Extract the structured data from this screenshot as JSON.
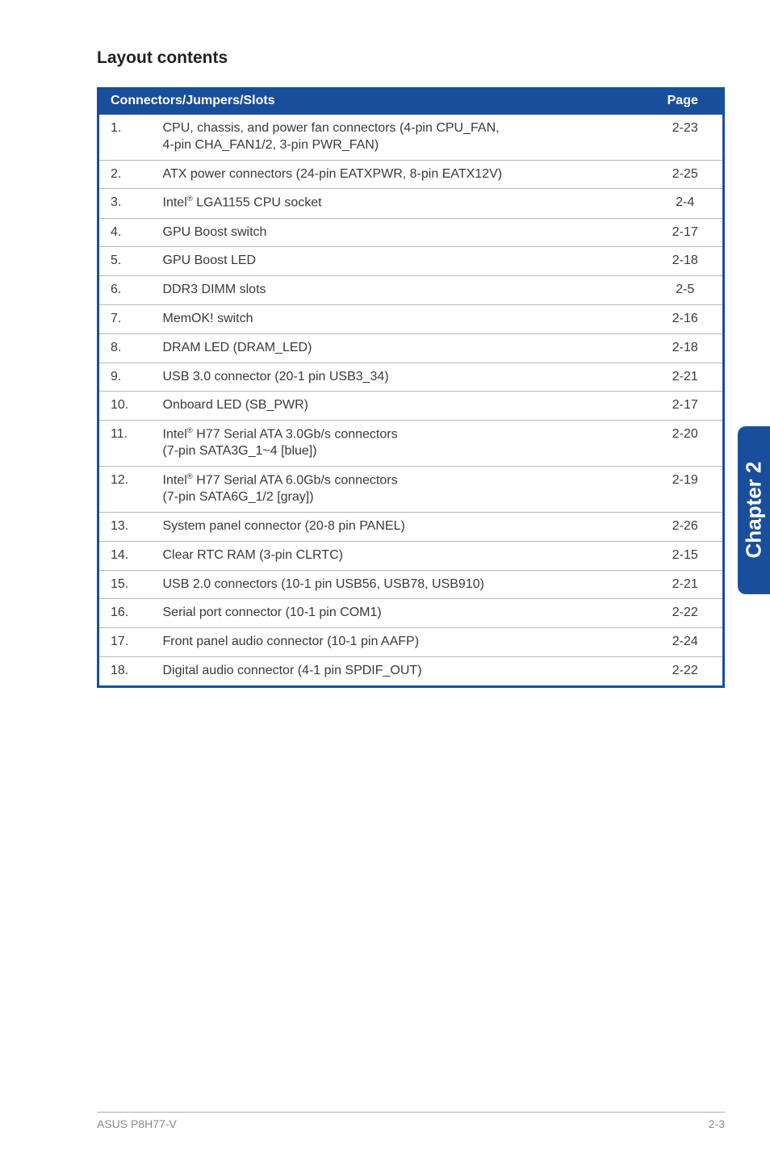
{
  "section_title": "Layout contents",
  "side_tab": "Chapter 2",
  "table": {
    "header_main": "Connectors/Jumpers/Slots",
    "header_page": "Page",
    "rows": [
      {
        "n": "1.",
        "desc": "CPU, chassis, and power fan connectors (4-pin CPU_FAN, 4-pin CHA_FAN1/2, 3-pin PWR_FAN)",
        "pg": "2-23"
      },
      {
        "n": "2.",
        "desc": "ATX power connectors (24-pin EATXPWR, 8-pin EATX12V)",
        "pg": "2-25"
      },
      {
        "n": "3.",
        "desc": "Intel® LGA1155 CPU socket",
        "pg": "2-4",
        "sup_after": "Intel"
      },
      {
        "n": "4.",
        "desc": "GPU Boost switch",
        "pg": "2-17"
      },
      {
        "n": "5.",
        "desc": "GPU Boost LED",
        "pg": "2-18"
      },
      {
        "n": "6.",
        "desc": "DDR3 DIMM slots",
        "pg": "2-5"
      },
      {
        "n": "7.",
        "desc": "MemOK! switch",
        "pg": "2-16"
      },
      {
        "n": "8.",
        "desc": "DRAM LED (DRAM_LED)",
        "pg": "2-18"
      },
      {
        "n": "9.",
        "desc": "USB 3.0 connector (20-1 pin USB3_34)",
        "pg": "2-21"
      },
      {
        "n": "10.",
        "desc": "Onboard LED (SB_PWR)",
        "pg": "2-17"
      },
      {
        "n": "11.",
        "desc": "Intel® H77 Serial ATA 3.0Gb/s connectors (7-pin SATA3G_1~4 [blue])",
        "pg": "2-20",
        "sup_after": "Intel"
      },
      {
        "n": "12.",
        "desc": "Intel® H77 Serial ATA 6.0Gb/s connectors (7-pin SATA6G_1/2 [gray])",
        "pg": "2-19",
        "sup_after": "Intel"
      },
      {
        "n": "13.",
        "desc": "System panel connector (20-8 pin PANEL)",
        "pg": "2-26"
      },
      {
        "n": "14.",
        "desc": "Clear RTC RAM (3-pin CLRTC)",
        "pg": "2-15"
      },
      {
        "n": "15.",
        "desc": "USB 2.0 connectors (10-1 pin USB56, USB78, USB910)",
        "pg": "2-21"
      },
      {
        "n": "16.",
        "desc": "Serial port connector (10-1 pin COM1)",
        "pg": "2-22"
      },
      {
        "n": "17.",
        "desc": "Front panel audio connector (10-1 pin AAFP)",
        "pg": "2-24"
      },
      {
        "n": "18.",
        "desc": "Digital audio connector (4-1 pin SPDIF_OUT)",
        "pg": "2-22"
      }
    ]
  },
  "row11_line1": "Intel",
  "row11_line1b": " H77 Serial ATA 3.0Gb/s connectors",
  "row11_line2": "(7-pin SATA3G_1~4 [blue])",
  "row12_line1": "Intel",
  "row12_line1b": " H77 Serial ATA 6.0Gb/s connectors",
  "row12_line2": "(7-pin SATA6G_1/2 [gray])",
  "row1_line1": "CPU, chassis, and power fan connectors (4-pin CPU_FAN,",
  "row1_line2": "4-pin CHA_FAN1/2, 3-pin PWR_FAN)",
  "row3_a": "Intel",
  "row3_b": " LGA1155 CPU socket",
  "reg": "®",
  "footer": {
    "left": "ASUS P8H77-V",
    "right": "2-3"
  }
}
